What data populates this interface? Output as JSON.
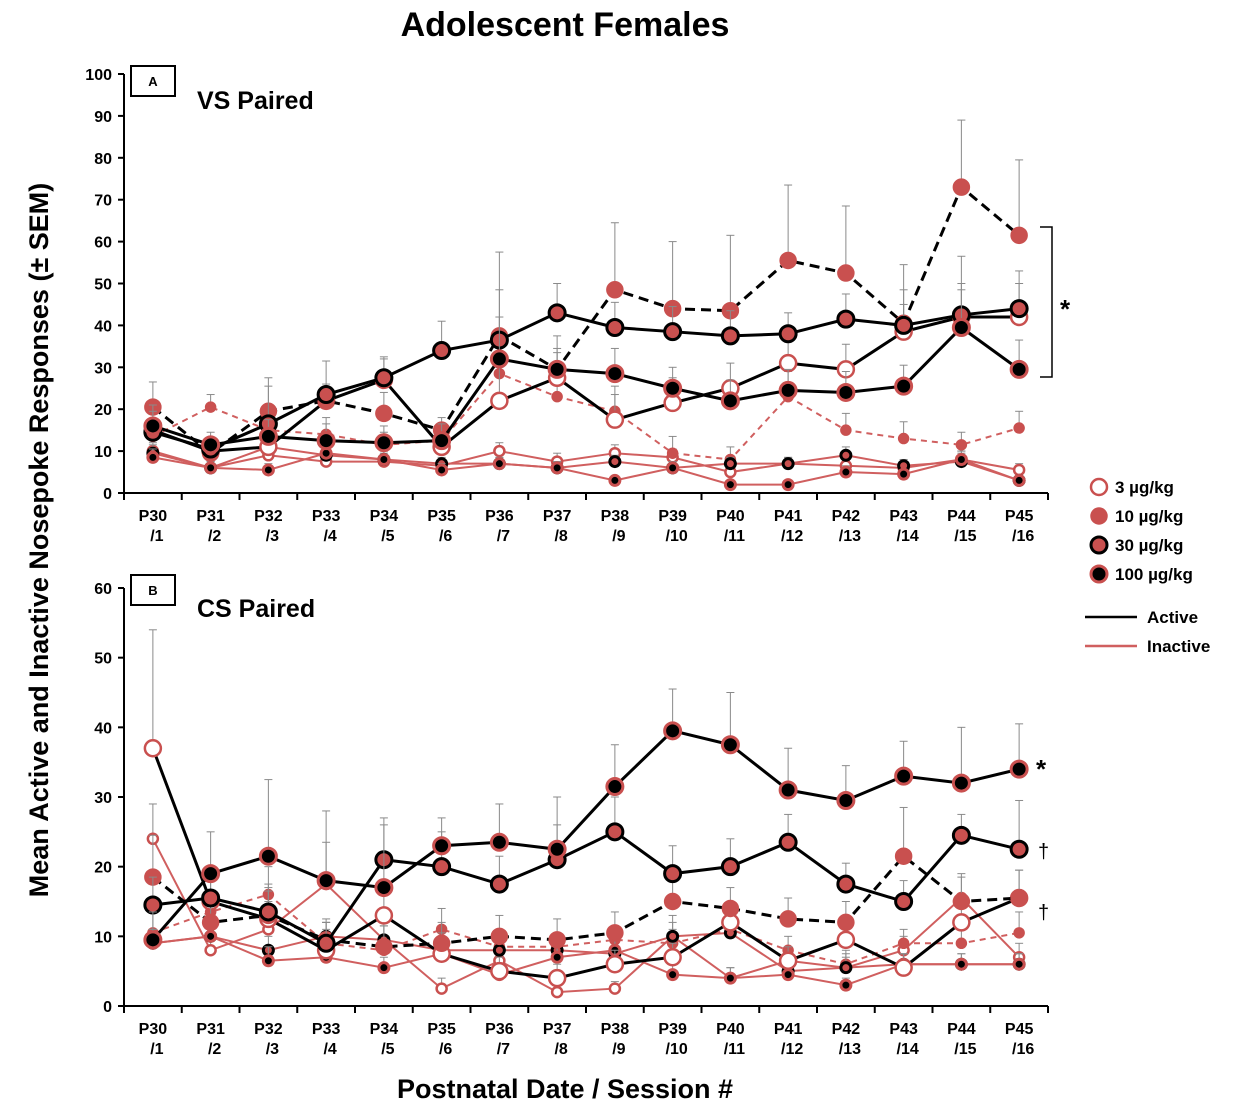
{
  "title": "Adolescent Females",
  "ylabel": "Mean Active and Inactive Nosepoke Responses (± SEM)",
  "xlabel": "Postnatal Date / Session #",
  "x_categories": [
    [
      "P30",
      "/1"
    ],
    [
      "P31",
      "/2"
    ],
    [
      "P32",
      "/3"
    ],
    [
      "P33",
      "/4"
    ],
    [
      "P34",
      "/5"
    ],
    [
      "P35",
      "/6"
    ],
    [
      "P36",
      "/7"
    ],
    [
      "P37",
      "/8"
    ],
    [
      "P38",
      "/9"
    ],
    [
      "P39",
      "/10"
    ],
    [
      "P40",
      "/11"
    ],
    [
      "P41",
      "/12"
    ],
    [
      "P42",
      "/13"
    ],
    [
      "P43",
      "/14"
    ],
    [
      "P44",
      "/15"
    ],
    [
      "P45",
      "/16"
    ]
  ],
  "legend": {
    "doses": [
      {
        "name": "3 µg/kg",
        "marker": "open-red"
      },
      {
        "name": "10 µg/kg",
        "marker": "filled-red"
      },
      {
        "name": "30 µg/kg",
        "marker": "red-black-ring"
      },
      {
        "name": "100 µg/kg",
        "marker": "black-red-ring"
      }
    ],
    "lines": [
      {
        "name": "Active",
        "color": "#000000"
      },
      {
        "name": "Inactive",
        "color": "#d05f5f"
      }
    ]
  },
  "colors": {
    "active": "#000000",
    "inactive": "#d05f5f",
    "marker_red": "#c9504f"
  },
  "chart_data": [
    {
      "type": "line",
      "panel_letter": "A",
      "title": "VS Paired",
      "ylim": [
        0,
        100
      ],
      "yticks": [
        0,
        10,
        20,
        30,
        40,
        50,
        60,
        70,
        80,
        90,
        100
      ],
      "significance": [
        "*"
      ],
      "series": [
        {
          "dose": "3 µg/kg",
          "response": "Active",
          "marker": "open-red",
          "line": "solid",
          "values": [
            15,
            10,
            11,
            22,
            27,
            11,
            22,
            27.5,
            17.5,
            21.5,
            25,
            31,
            29.5,
            38.5,
            42,
            42
          ],
          "sem": [
            2,
            1.5,
            2,
            3,
            5,
            2,
            8,
            6,
            6,
            6,
            6,
            8,
            6,
            10,
            8,
            8
          ]
        },
        {
          "dose": "3 µg/kg",
          "response": "Inactive",
          "marker": "open-red",
          "line": "solid",
          "values": [
            10,
            6,
            9,
            7.5,
            7.5,
            6.5,
            10,
            7.5,
            9.5,
            8.5,
            5,
            7,
            6.5,
            6,
            8,
            5.5
          ],
          "sem": [
            2,
            1.5,
            2,
            2,
            2,
            1.5,
            2,
            2,
            2,
            2,
            1.5,
            1.5,
            1.5,
            1.5,
            2,
            1.5
          ]
        },
        {
          "dose": "10 µg/kg",
          "response": "Active",
          "marker": "filled-red",
          "line": "dashed",
          "values": [
            20.5,
            9.5,
            19.5,
            22,
            19,
            15,
            37.5,
            29.5,
            48.5,
            44,
            43.5,
            55.5,
            52.5,
            40.5,
            73,
            61.5
          ],
          "sem": [
            6,
            2,
            8,
            4,
            5,
            3,
            20,
            8,
            16,
            16,
            18,
            18,
            16,
            14,
            16,
            18
          ]
        },
        {
          "dose": "10 µg/kg",
          "response": "Inactive",
          "marker": "filled-red",
          "line": "dashed",
          "values": [
            13.5,
            20.5,
            15,
            14,
            11.5,
            12.5,
            28.5,
            23,
            19.5,
            9.5,
            8,
            23,
            15,
            13,
            11.5,
            15.5
          ],
          "sem": [
            3,
            3,
            4,
            4,
            3,
            3,
            7,
            4,
            6,
            4,
            3,
            6,
            4,
            4,
            3,
            4
          ]
        },
        {
          "dose": "30 µg/kg",
          "response": "Active",
          "marker": "red-black-ring",
          "line": "solid",
          "values": [
            14.5,
            10.5,
            16.5,
            23.5,
            27.5,
            34,
            36.5,
            43,
            39.5,
            38.5,
            37.5,
            38,
            41.5,
            40,
            42.5,
            44
          ],
          "sem": [
            5,
            2,
            9,
            8,
            5,
            7,
            12,
            7,
            6,
            6,
            6,
            5,
            6,
            5,
            14,
            9
          ]
        },
        {
          "dose": "30 µg/kg",
          "response": "Inactive",
          "marker": "red-black-ring",
          "line": "solid",
          "values": [
            9.5,
            6,
            11,
            9,
            8,
            7,
            7,
            6,
            7.5,
            6,
            7,
            7,
            9,
            6.5,
            7.5,
            3
          ],
          "sem": [
            2,
            1.5,
            2,
            2,
            2,
            1.5,
            1.5,
            1.5,
            1.5,
            1.5,
            1.5,
            1.5,
            2,
            1.5,
            2,
            1
          ]
        },
        {
          "dose": "100 µg/kg",
          "response": "Active",
          "marker": "black-red-ring",
          "line": "solid",
          "values": [
            16,
            11.5,
            13.5,
            12.5,
            12,
            12.5,
            32,
            29.5,
            28.5,
            25,
            22,
            24.5,
            24,
            25.5,
            39.5,
            29.5
          ],
          "sem": [
            5,
            3,
            4,
            4,
            4,
            4,
            10,
            5,
            6,
            5,
            5,
            5,
            5,
            5,
            9,
            7
          ]
        },
        {
          "dose": "100 µg/kg",
          "response": "Inactive",
          "marker": "black-red-ring",
          "line": "solid",
          "values": [
            8.5,
            6,
            5.5,
            9.5,
            8,
            5.5,
            7,
            6,
            3,
            6,
            2,
            2,
            5,
            4.5,
            8,
            3
          ],
          "sem": [
            2,
            1.5,
            1.5,
            2,
            2,
            1.5,
            1.5,
            1.5,
            1,
            1.5,
            1,
            1,
            1.5,
            1,
            2,
            1
          ]
        }
      ]
    },
    {
      "type": "line",
      "panel_letter": "B",
      "title": "CS Paired",
      "ylim": [
        0,
        60
      ],
      "yticks": [
        0,
        10,
        20,
        30,
        40,
        50,
        60
      ],
      "significance": [
        "*",
        "†",
        "†"
      ],
      "series": [
        {
          "dose": "3 µg/kg",
          "response": "Active",
          "marker": "open-red",
          "line": "solid",
          "values": [
            37,
            15,
            12.5,
            8,
            13,
            7.5,
            5,
            4,
            6,
            7,
            12,
            6.5,
            9.5,
            5.5,
            12,
            15.5
          ],
          "sem": [
            17,
            4,
            4,
            3,
            5,
            3,
            2,
            2,
            2,
            2,
            3,
            2,
            3,
            2,
            4,
            4
          ]
        },
        {
          "dose": "3 µg/kg",
          "response": "Inactive",
          "marker": "open-red",
          "line": "solid",
          "values": [
            24,
            8,
            11,
            17.5,
            9.5,
            2.5,
            6.5,
            2,
            2.5,
            10,
            4,
            6.5,
            5.5,
            8,
            15.5,
            7
          ],
          "sem": [
            5,
            3,
            4,
            6,
            3,
            1.5,
            2,
            1,
            1,
            3,
            1.5,
            2,
            2,
            2,
            3,
            2
          ]
        },
        {
          "dose": "10 µg/kg",
          "response": "Active",
          "marker": "filled-red",
          "line": "dashed",
          "values": [
            18.5,
            12,
            13,
            9.5,
            8.5,
            9,
            10,
            9.5,
            10.5,
            15,
            14,
            12.5,
            12,
            21.5,
            15,
            15.5
          ],
          "sem": [
            6,
            3,
            4,
            3,
            3,
            3,
            3,
            3,
            3,
            4,
            3,
            3,
            3,
            7,
            4,
            4
          ]
        },
        {
          "dose": "10 µg/kg",
          "response": "Inactive",
          "marker": "filled-red",
          "line": "dashed",
          "values": [
            10.5,
            13.5,
            16,
            9,
            8,
            11,
            8.5,
            8.5,
            9.5,
            9,
            11,
            8,
            6,
            9,
            9,
            10.5
          ],
          "sem": [
            3,
            3,
            4,
            3,
            2,
            3,
            2,
            2,
            2,
            2,
            3,
            2,
            2,
            2,
            2,
            3
          ]
        },
        {
          "dose": "30 µg/kg",
          "response": "Active",
          "marker": "red-black-ring",
          "line": "solid",
          "values": [
            14.5,
            15.5,
            13.5,
            9,
            21,
            20,
            17.5,
            21,
            25,
            19,
            20,
            23.5,
            17.5,
            15,
            24.5,
            22.5
          ],
          "sem": [
            4,
            4,
            4,
            3,
            5,
            5,
            4,
            5,
            5,
            4,
            4,
            4,
            3,
            3,
            3,
            7
          ]
        },
        {
          "dose": "30 µg/kg",
          "response": "Inactive",
          "marker": "red-black-ring",
          "line": "solid",
          "values": [
            9,
            10,
            8,
            10,
            9.5,
            8,
            8,
            8,
            7.5,
            10,
            10.5,
            5,
            5.5,
            6,
            6,
            6
          ],
          "sem": [
            2,
            2,
            2,
            2,
            2,
            2,
            2,
            2,
            2,
            2,
            2,
            1.5,
            1.5,
            1.5,
            1.5,
            1.5
          ]
        },
        {
          "dose": "100 µg/kg",
          "response": "Active",
          "marker": "black-red-ring",
          "line": "solid",
          "values": [
            9.5,
            19,
            21.5,
            18,
            17,
            23,
            23.5,
            22.5,
            31.5,
            39.5,
            37.5,
            31,
            29.5,
            33,
            32,
            34
          ],
          "sem": [
            4,
            6,
            11,
            10,
            10,
            4,
            5.5,
            7.5,
            6,
            6,
            7.5,
            6,
            5,
            5,
            8,
            6.5
          ]
        },
        {
          "dose": "100 µg/kg",
          "response": "Inactive",
          "marker": "black-red-ring",
          "line": "solid",
          "values": [
            9,
            10,
            6.5,
            7,
            5.5,
            7.5,
            4.5,
            7,
            8,
            4.5,
            4,
            4.5,
            3,
            6,
            6,
            6
          ],
          "sem": [
            2,
            2,
            2,
            2,
            1.5,
            2,
            1.5,
            2,
            2,
            1.5,
            1.5,
            1.5,
            1,
            1.5,
            1.5,
            1.5
          ]
        }
      ]
    }
  ]
}
